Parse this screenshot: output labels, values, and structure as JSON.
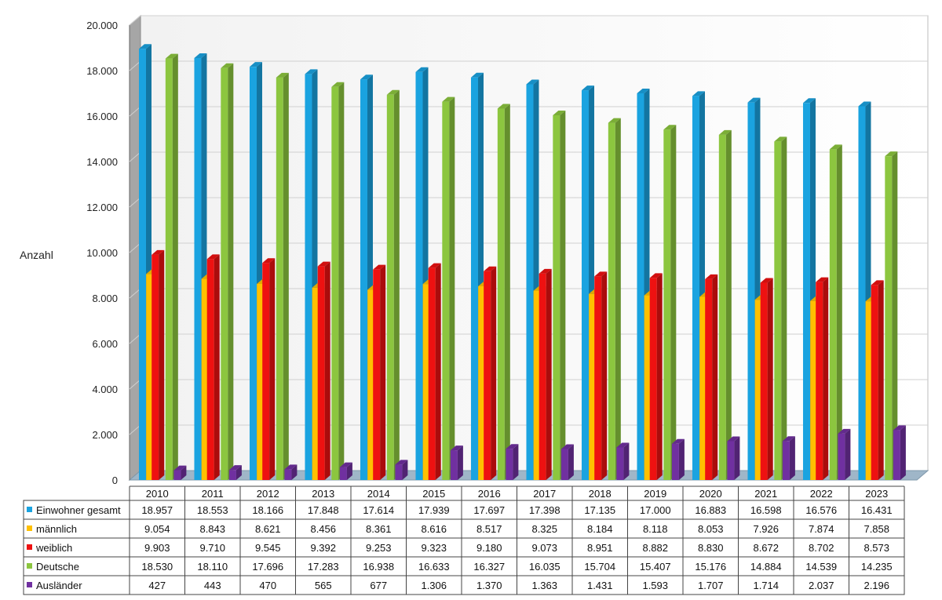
{
  "chart_data": {
    "type": "bar",
    "title": "",
    "ylabel": "Anzahl",
    "ylim": [
      0,
      20000
    ],
    "y_ticks": [
      "0",
      "2.000",
      "4.000",
      "6.000",
      "8.000",
      "10.000",
      "12.000",
      "14.000",
      "16.000",
      "18.000",
      "20.000"
    ],
    "grid": true,
    "legend": "table-below",
    "categories": [
      "2010",
      "2011",
      "2012",
      "2013",
      "2014",
      "2015",
      "2016",
      "2017",
      "2018",
      "2019",
      "2020",
      "2021",
      "2022",
      "2023"
    ],
    "series": [
      {
        "name": "Einwohner gesamt",
        "color": "#1aa3e0",
        "values": [
          18957,
          18553,
          18166,
          17848,
          17614,
          17939,
          17697,
          17398,
          17135,
          17000,
          16883,
          16598,
          16576,
          16431
        ],
        "labels": [
          "18.957",
          "18.553",
          "18.166",
          "17.848",
          "17.614",
          "17.939",
          "17.697",
          "17.398",
          "17.135",
          "17.000",
          "16.883",
          "16.598",
          "16.576",
          "16.431"
        ]
      },
      {
        "name": "männlich",
        "color": "#ffc000",
        "values": [
          9054,
          8843,
          8621,
          8456,
          8361,
          8616,
          8517,
          8325,
          8184,
          8118,
          8053,
          7926,
          7874,
          7858
        ],
        "labels": [
          "9.054",
          "8.843",
          "8.621",
          "8.456",
          "8.361",
          "8.616",
          "8.517",
          "8.325",
          "8.184",
          "8.118",
          "8.053",
          "7.926",
          "7.874",
          "7.858"
        ]
      },
      {
        "name": "weiblich",
        "color": "#ee1111",
        "values": [
          9903,
          9710,
          9545,
          9392,
          9253,
          9323,
          9180,
          9073,
          8951,
          8882,
          8830,
          8672,
          8702,
          8573
        ],
        "labels": [
          "9.903",
          "9.710",
          "9.545",
          "9.392",
          "9.253",
          "9.323",
          "9.180",
          "9.073",
          "8.951",
          "8.882",
          "8.830",
          "8.672",
          "8.702",
          "8.573"
        ]
      },
      {
        "name": "Deutsche",
        "color": "#8cc63f",
        "values": [
          18530,
          18110,
          17696,
          17283,
          16938,
          16633,
          16327,
          16035,
          15704,
          15407,
          15176,
          14884,
          14539,
          14235
        ],
        "labels": [
          "18.530",
          "18.110",
          "17.696",
          "17.283",
          "16.938",
          "16.633",
          "16.327",
          "16.035",
          "15.704",
          "15.407",
          "15.176",
          "14.884",
          "14.539",
          "14.235"
        ]
      },
      {
        "name": "Ausländer",
        "color": "#7030a0",
        "values": [
          427,
          443,
          470,
          565,
          677,
          1306,
          1370,
          1363,
          1431,
          1593,
          1707,
          1714,
          2037,
          2196
        ],
        "labels": [
          "427",
          "443",
          "470",
          "565",
          "677",
          "1.306",
          "1.370",
          "1.363",
          "1.431",
          "1.593",
          "1.707",
          "1.714",
          "2.037",
          "2.196"
        ]
      }
    ]
  }
}
